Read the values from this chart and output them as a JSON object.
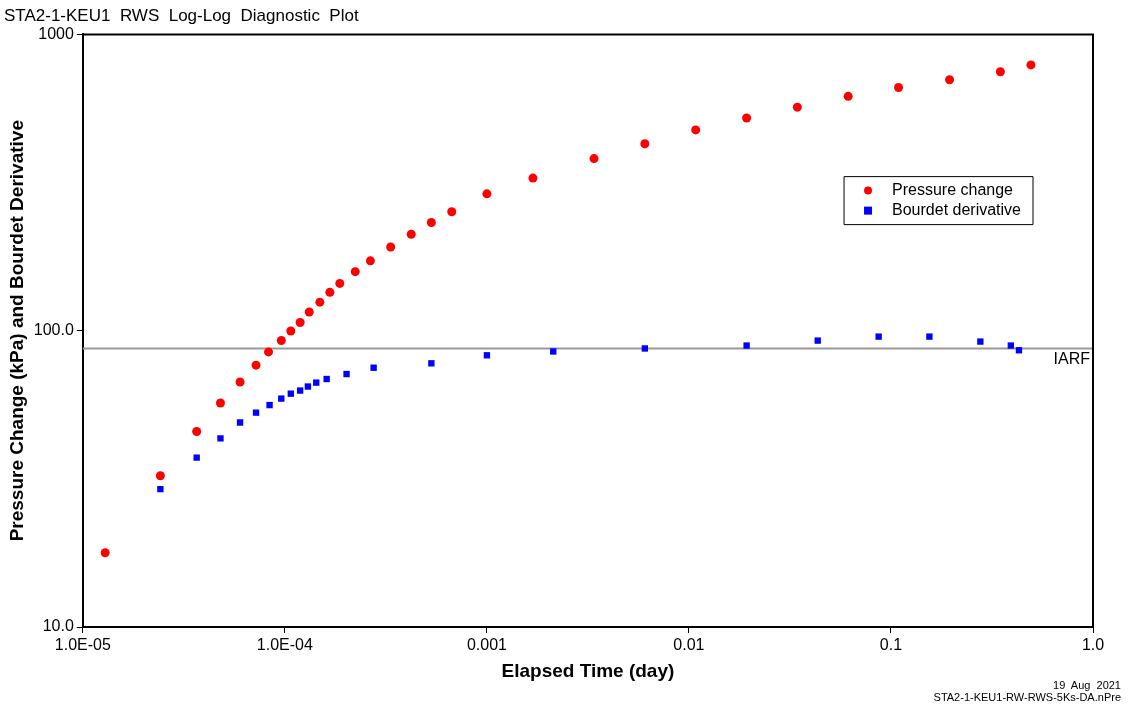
{
  "chart_data": {
    "type": "scatter",
    "title": "STA2-1-KEU1  RWS  Log-Log  Diagnostic  Plot",
    "xlabel": "Elapsed Time (day)",
    "ylabel": "Pressure Change (kPa) and Bourdet Derivative",
    "log": "xy",
    "grid": false,
    "legend": "top right",
    "xlim": [
      1e-05,
      1
    ],
    "ylim": [
      10,
      1000
    ],
    "xticks": [
      {
        "value": 1e-05,
        "label": "1.0E-05"
      },
      {
        "value": 0.0001,
        "label": "1.0E-04"
      },
      0.001,
      0.01,
      0.1,
      {
        "value": 1,
        "label": "1.0"
      }
    ],
    "yticks": [
      {
        "value": 10,
        "label": "10.0"
      },
      {
        "value": 100,
        "label": "100.0"
      },
      1000
    ],
    "ref_lines": [
      {
        "axis": "y",
        "value": 87,
        "label": "IARF",
        "color": "#999999"
      }
    ],
    "annotations": [
      "19  Aug  2021",
      "STA2-1-KEU1-RW-RWS-5Ks-DA.nPre"
    ],
    "series": [
      {
        "name": "Pressure change",
        "color": "#ff0000",
        "marker": "circle",
        "x": [
          1.29e-05,
          2.42e-05,
          3.66e-05,
          4.8e-05,
          6e-05,
          7.2e-05,
          8.3e-05,
          9.6e-05,
          0.000107,
          0.000119,
          0.000132,
          0.000149,
          0.000167,
          0.000187,
          0.000223,
          0.000265,
          0.000334,
          0.000422,
          0.000531,
          0.00067,
          0.001,
          0.00169,
          0.00339,
          0.00605,
          0.0108,
          0.0193,
          0.0344,
          0.0614,
          0.109,
          0.195,
          0.348,
          0.493
        ],
        "values": [
          17.8,
          32.4,
          45.7,
          57,
          67.1,
          76.5,
          84.8,
          92.7,
          99.8,
          106.6,
          115.6,
          124.8,
          134.8,
          144.4,
          158.2,
          172.1,
          191.6,
          211.6,
          231.9,
          252.1,
          289.7,
          327.4,
          381,
          427.6,
          476,
          522,
          568,
          618,
          662,
          703,
          748,
          789
        ]
      },
      {
        "name": "Bourdet derivative",
        "color": "#0000ff",
        "marker": "square",
        "x": [
          2.42e-05,
          3.66e-05,
          4.8e-05,
          6e-05,
          7.2e-05,
          8.4e-05,
          9.6e-05,
          0.000107,
          0.000119,
          0.00013,
          0.000143,
          0.000161,
          0.000202,
          0.000275,
          0.000531,
          0.001,
          0.00213,
          0.00605,
          0.0193,
          0.0434,
          0.0869,
          0.155,
          0.277,
          0.392,
          0.43
        ],
        "values": [
          29.2,
          37.3,
          43.3,
          49,
          52.9,
          56.1,
          59,
          61.3,
          62.8,
          64.8,
          66.8,
          68.7,
          71.4,
          75,
          77.6,
          82.6,
          85.1,
          87.1,
          89.1,
          92.6,
          95.5,
          95.5,
          91.9,
          89.1,
          85.9
        ]
      }
    ]
  }
}
